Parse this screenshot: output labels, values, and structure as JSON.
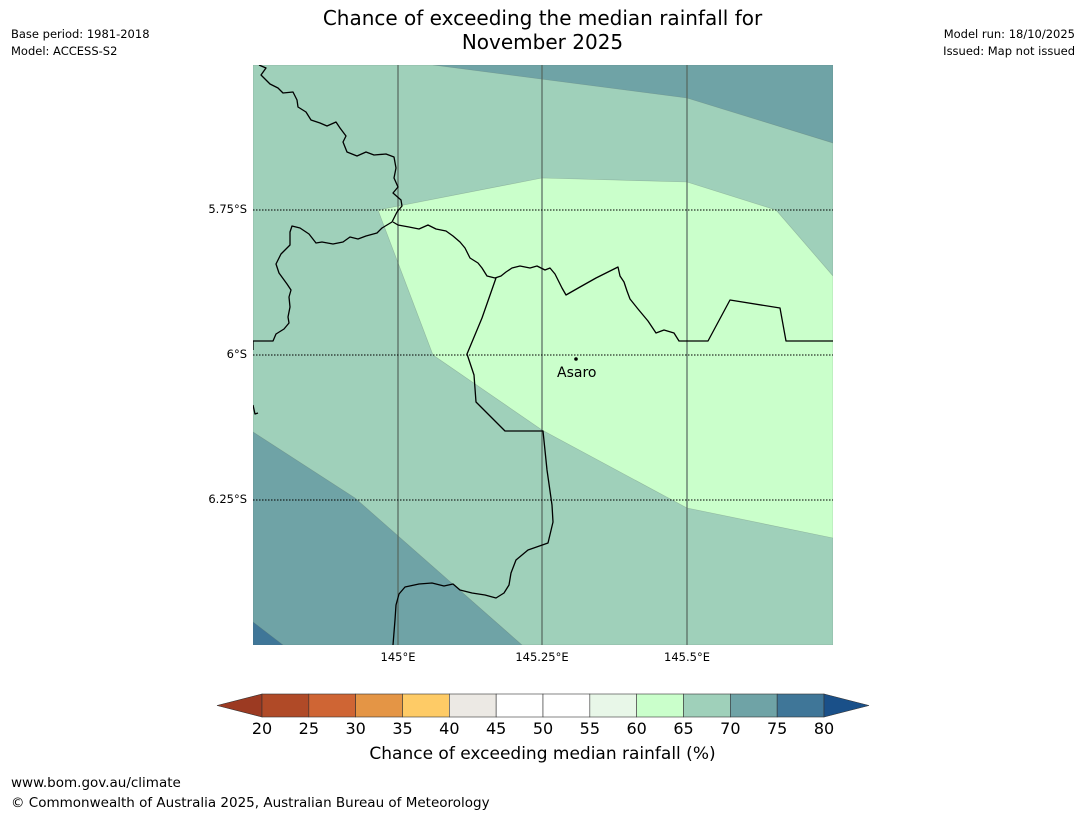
{
  "title_line1": "Chance of exceeding the median rainfall for",
  "title_line2": "November 2025",
  "meta_left": {
    "base_period": "Base period: 1981-2018",
    "model": "Model: ACCESS-S2"
  },
  "meta_right": {
    "model_run": "Model run: 18/10/2025",
    "issued": "Issued: Map not issued"
  },
  "lat_labels": [
    "5.75°S",
    "6°S",
    "6.25°S"
  ],
  "lon_labels": [
    "145°E",
    "145.25°E",
    "145.5°E"
  ],
  "place": {
    "name": "Asaro"
  },
  "colorbar": {
    "title": "Chance of exceeding median rainfall (%)",
    "ticks": [
      "20",
      "25",
      "30",
      "35",
      "40",
      "45",
      "50",
      "55",
      "60",
      "65",
      "70",
      "75",
      "80"
    ],
    "colors": [
      "#b04a27",
      "#cf6534",
      "#e49545",
      "#fecb66",
      "#ece9e4",
      "#ffffff",
      "#ffffff",
      "#e8f7e8",
      "#caffcb",
      "#9fd0ba",
      "#6fa3a6",
      "#3f7698"
    ],
    "under_color": "#9c3a22",
    "over_color": "#1a5089"
  },
  "footer": {
    "url": "www.bom.gov.au/climate",
    "copyright": "© Commonwealth of Australia 2025, Australian Bureau of Meteorology"
  }
}
